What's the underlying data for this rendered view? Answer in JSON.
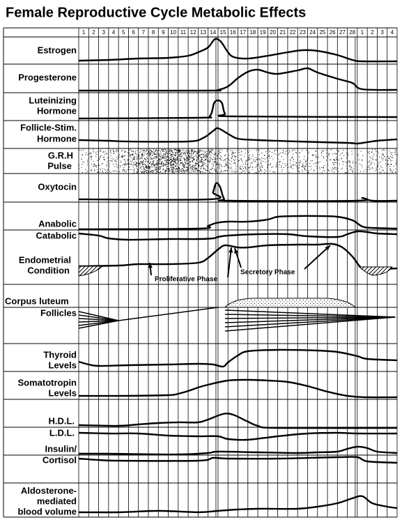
{
  "title": "Female Reproductive Cycle Metabolic Effects",
  "days": [
    "1",
    "2",
    "3",
    "4",
    "5",
    "6",
    "7",
    "8",
    "9",
    "10",
    "11",
    "12",
    "13",
    "14",
    "15",
    "16",
    "17",
    "18",
    "19",
    "20",
    "21",
    "22",
    "23",
    "24",
    "25",
    "26",
    "27",
    "28",
    "1",
    "2",
    "3",
    "4"
  ],
  "rows": [
    {
      "labels": [
        "Estrogen"
      ]
    },
    {
      "labels": [
        "Progesterone"
      ]
    },
    {
      "labels": [
        "Luteinizing",
        "Hormone"
      ]
    },
    {
      "labels": [
        "Follicle-Stim.",
        "Hormone"
      ]
    },
    {
      "labels": [
        "G.R.H",
        "Pulse"
      ]
    },
    {
      "labels": [
        "Oxytocin"
      ]
    },
    {
      "labels": [
        "Anabolic",
        "Catabolic"
      ]
    },
    {
      "labels": [
        "Endometrial",
        "Condition"
      ]
    },
    {
      "labels": [
        "Corpus luteum",
        "Follicles"
      ]
    },
    {
      "labels": [
        "Thyroid",
        "Levels"
      ]
    },
    {
      "labels": [
        "Somatotropin",
        "Levels"
      ]
    },
    {
      "labels": [
        "H.D.L.",
        "L.D.L."
      ]
    },
    {
      "labels": [
        "Insulin/",
        "Cortisol"
      ]
    },
    {
      "labels": [
        "Aldosterone-",
        "mediated",
        "blood volume"
      ]
    }
  ],
  "annotations": [
    "Proliferative Phase",
    "Secretory Phase"
  ]
}
